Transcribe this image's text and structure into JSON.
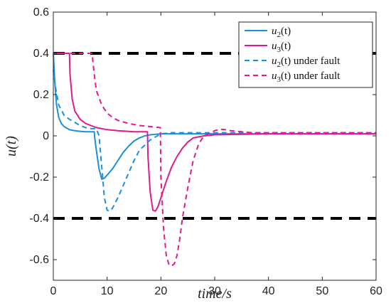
{
  "chart_data": {
    "type": "line",
    "title": "",
    "xlabel": "time/s",
    "ylabel": "u(t)",
    "xlim": [
      0,
      60
    ],
    "ylim": [
      -0.7,
      0.6
    ],
    "xticks": [
      0,
      10,
      20,
      30,
      40,
      50,
      60
    ],
    "xtick_labels": [
      "0",
      "10",
      "20",
      "30",
      "40",
      "50",
      "60"
    ],
    "yticks": [
      0.6,
      0.4,
      0.2,
      0,
      -0.2,
      -0.4,
      -0.6
    ],
    "ytick_labels": [
      "0.6",
      "0.4",
      "0.2",
      "0",
      "-0.2",
      "-0.4",
      "-0.6"
    ],
    "grid": false,
    "legend_position": "top-right",
    "colors": {
      "blue": "#1a8fe0",
      "magenta": "#e01a8f",
      "bounds": "#000000"
    },
    "bounds": [
      0.4,
      -0.4
    ],
    "series": [
      {
        "name": "u2(t)",
        "legend_main": "u",
        "legend_sub": "2",
        "legend_suffix": "(t)",
        "color": "#1a8fe0",
        "dash": "solid",
        "x": [
          0,
          0.3,
          0.6,
          1,
          1.5,
          2,
          3,
          4,
          5,
          6,
          7.6,
          7.7,
          8.0,
          8.5,
          9.0,
          9.5,
          10,
          11,
          12,
          13,
          14,
          15,
          16,
          17,
          18,
          20,
          25,
          30,
          60
        ],
        "y": [
          0.4,
          0.25,
          0.15,
          0.09,
          0.06,
          0.045,
          0.03,
          0.025,
          0.022,
          0.02,
          0.02,
          -0.01,
          -0.07,
          -0.16,
          -0.21,
          -0.205,
          -0.19,
          -0.16,
          -0.12,
          -0.08,
          -0.05,
          -0.025,
          -0.01,
          0.0,
          0.005,
          0.01,
          0.01,
          0.01,
          0.01
        ]
      },
      {
        "name": "u3(t)",
        "legend_main": "u",
        "legend_sub": "3",
        "legend_suffix": "(t)",
        "color": "#e01a8f",
        "dash": "solid",
        "x": [
          0,
          3,
          3.1,
          3.5,
          4,
          5,
          6,
          7,
          8,
          10,
          12,
          15,
          17.5,
          17.6,
          18.0,
          18.5,
          19.0,
          19.5,
          20,
          21,
          22,
          23,
          24,
          25,
          26,
          28,
          30,
          40,
          60
        ],
        "y": [
          0.4,
          0.4,
          0.3,
          0.18,
          0.12,
          0.08,
          0.06,
          0.05,
          0.04,
          0.03,
          0.025,
          0.02,
          0.02,
          -0.1,
          -0.27,
          -0.36,
          -0.365,
          -0.34,
          -0.3,
          -0.22,
          -0.15,
          -0.1,
          -0.06,
          -0.03,
          -0.01,
          0.0,
          0.005,
          0.01,
          0.01
        ]
      },
      {
        "name": "u2(t) under fault",
        "legend_main": "u",
        "legend_sub": "2",
        "legend_suffix": "(t) under fault",
        "color": "#1a8fe0",
        "dash": "dashed",
        "x": [
          0,
          0.5,
          1,
          2,
          3,
          4,
          5,
          6,
          7,
          8,
          8.5,
          9,
          9.5,
          10,
          10.5,
          11,
          12,
          13,
          14,
          15,
          16,
          18,
          20,
          22,
          25,
          30,
          60
        ],
        "y": [
          0.32,
          0.22,
          0.15,
          0.1,
          0.08,
          0.065,
          0.05,
          0.04,
          0.035,
          0.035,
          0.0,
          -0.15,
          -0.3,
          -0.36,
          -0.365,
          -0.35,
          -0.3,
          -0.24,
          -0.18,
          -0.12,
          -0.07,
          -0.02,
          0.01,
          0.015,
          0.015,
          0.015,
          0.015
        ]
      },
      {
        "name": "u3(t) under fault",
        "legend_main": "u",
        "legend_sub": "3",
        "legend_suffix": "(t) under fault",
        "color": "#e01a8f",
        "dash": "dashed",
        "x": [
          0,
          7.2,
          7.6,
          8,
          9,
          10,
          11,
          12,
          14,
          16,
          18,
          19.9,
          20.0,
          20.5,
          21,
          21.5,
          22,
          22.5,
          23,
          23.5,
          24,
          25,
          26,
          27,
          28,
          30,
          31,
          32,
          33,
          35,
          37,
          40,
          60
        ],
        "y": [
          0.4,
          0.4,
          0.3,
          0.22,
          0.15,
          0.11,
          0.09,
          0.075,
          0.06,
          0.05,
          0.045,
          0.04,
          -0.2,
          -0.45,
          -0.58,
          -0.625,
          -0.63,
          -0.62,
          -0.58,
          -0.5,
          -0.4,
          -0.25,
          -0.12,
          -0.04,
          0.0,
          0.025,
          0.032,
          0.03,
          0.025,
          0.02,
          0.015,
          0.015,
          0.015
        ]
      }
    ]
  }
}
